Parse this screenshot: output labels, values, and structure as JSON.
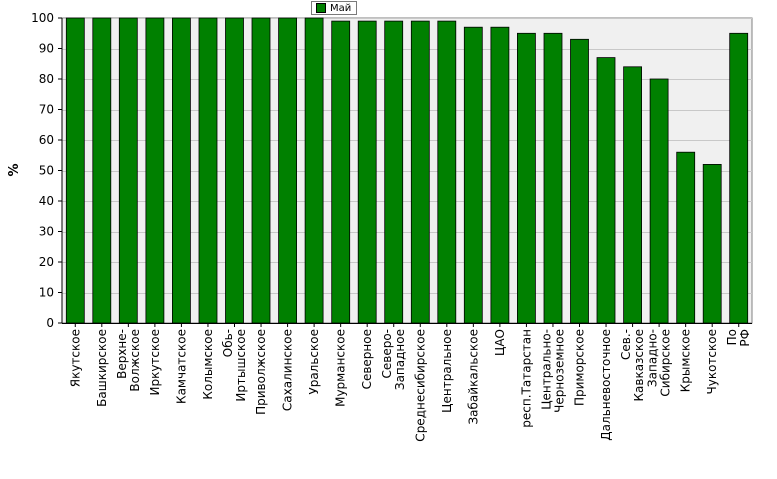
{
  "chart_data": {
    "type": "bar",
    "title": "",
    "xlabel": "",
    "ylabel": "%",
    "ylim": [
      0,
      100
    ],
    "yticks": [
      0,
      10,
      20,
      30,
      40,
      50,
      60,
      70,
      80,
      90,
      100
    ],
    "grid": true,
    "legend_position": "top-center",
    "bar_color": "#008000",
    "categories": [
      "Якутское",
      "Башкирское",
      "Верхне- Волжское",
      "Иркутское",
      "Камчатское",
      "Колымское",
      "Обь- Иртышское",
      "Приволжское",
      "Сахалинское",
      "Уральское",
      "Мурманское",
      "Северное",
      "Северо- Западное",
      "Среднесибирское",
      "Центральное",
      "Забайкальское",
      "ЦАО",
      "респ.Татарстан",
      "Центрально- Черноземное",
      "Приморское",
      "Дальневосточное",
      "Сев.- Кавказское",
      "Западно- Сибирское",
      "Крымское",
      "Чукотское",
      "По РФ"
    ],
    "series": [
      {
        "name": "Май",
        "values": [
          100,
          100,
          100,
          100,
          100,
          100,
          100,
          100,
          100,
          100,
          99,
          99,
          99,
          99,
          99,
          97,
          97,
          95,
          95,
          93,
          87,
          84,
          80,
          56,
          52,
          95
        ]
      }
    ]
  }
}
